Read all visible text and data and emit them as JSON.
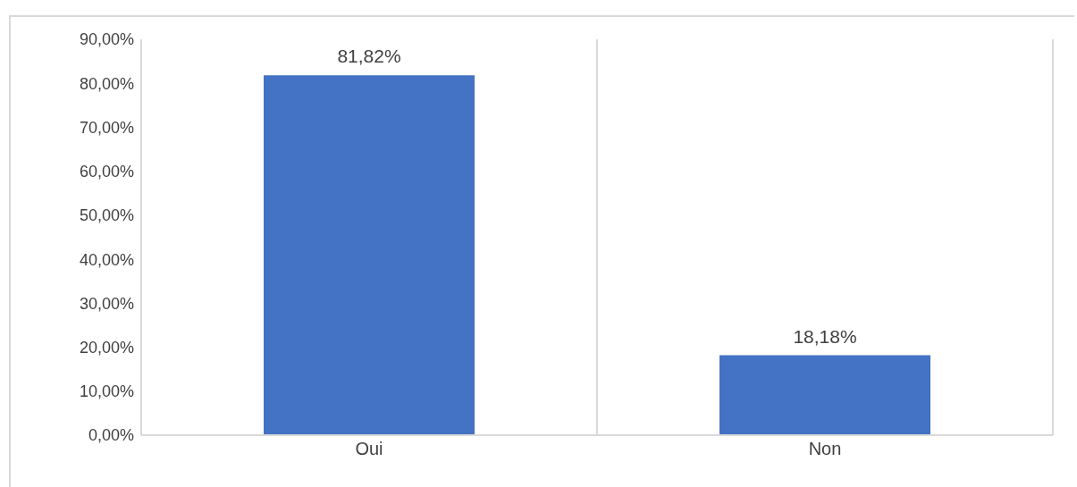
{
  "chart_data": {
    "type": "bar",
    "categories": [
      "Oui",
      "Non"
    ],
    "values": [
      81.82,
      18.18
    ],
    "color": "#4472c4",
    "value_labels": [
      "81,82%",
      "18,18%"
    ],
    "ylim": [
      0,
      90
    ],
    "yticks": [
      {
        "value": 0,
        "label": "0,00%"
      },
      {
        "value": 10,
        "label": "10,00%"
      },
      {
        "value": 20,
        "label": "20,00%"
      },
      {
        "value": 30,
        "label": "30,00%"
      },
      {
        "value": 40,
        "label": "40,00%"
      },
      {
        "value": 50,
        "label": "50,00%"
      },
      {
        "value": 60,
        "label": "60,00%"
      },
      {
        "value": 70,
        "label": "70,00%"
      },
      {
        "value": 80,
        "label": "80,00%"
      },
      {
        "value": 90,
        "label": "90,00%"
      }
    ],
    "grid": "x",
    "legend": false
  }
}
